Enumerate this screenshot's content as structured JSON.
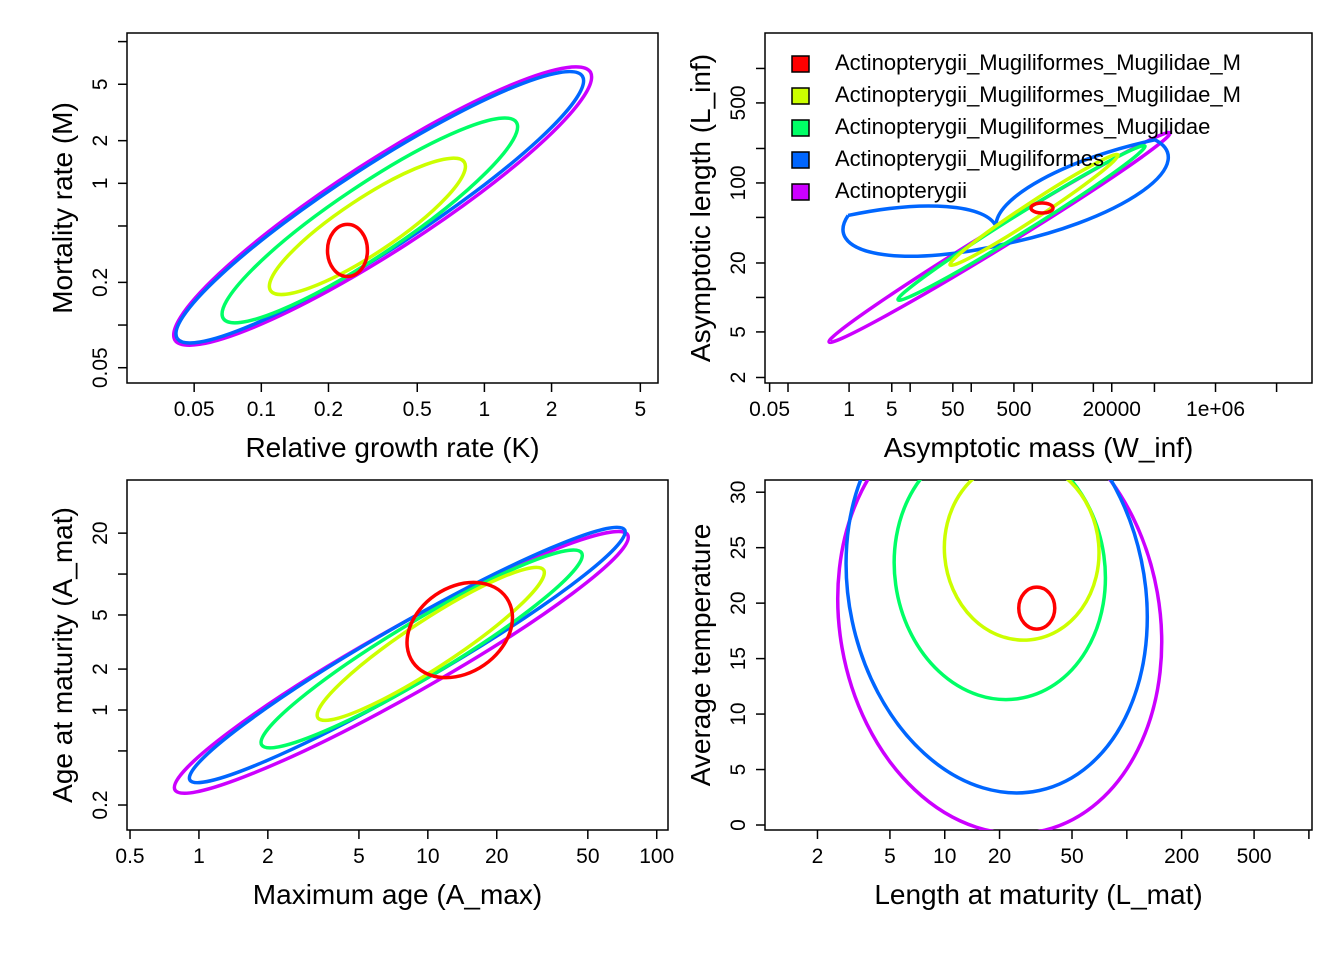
{
  "chart_data": [
    {
      "type": "ellipse",
      "xlabel": "Relative growth rate (K)",
      "ylabel": "Mortality rate (M)",
      "xlog": true,
      "ylog": true,
      "xlim": [
        0.025,
        6
      ],
      "ylim": [
        0.039,
        11.5
      ],
      "xticks": [
        0.05,
        0.1,
        0.2,
        0.5,
        1,
        2,
        5
      ],
      "yticks": [
        0.05,
        {
          "value": 0.1,
          "label": null
        },
        0.2,
        {
          "value": 0.5,
          "label": null
        },
        1,
        2,
        5,
        {
          "value": 10,
          "label": null
        }
      ],
      "series": [
        {
          "color": "#ff0000",
          "x": [
            0.198,
            0.243,
            0.299,
            0.243
          ],
          "y": [
            0.336,
            0.513,
            0.336,
            0.22
          ]
        },
        {
          "color": "#ccff00",
          "x": [
            0.11,
            0.256,
            0.813,
            0.349
          ],
          "y": [
            0.175,
            0.723,
            1.41,
            0.342
          ]
        },
        {
          "color": "#00ff66",
          "x": [
            0.0676,
            0.251,
            1.39,
            0.375
          ],
          "y": [
            0.111,
            0.878,
            2.7,
            0.342
          ]
        },
        {
          "color": "#0066ff",
          "x": [
            0.042,
            0.269,
            2.75,
            0.429
          ],
          "y": [
            0.0804,
            1.2,
            5.7,
            0.383
          ]
        },
        {
          "color": "#cc00ff",
          "x": [
            0.0411,
            0.272,
            2.99,
            0.447
          ],
          "y": [
            0.0778,
            1.28,
            6.08,
            0.371
          ]
        }
      ]
    },
    {
      "type": "ellipse",
      "xlabel": "Asymptotic mass (W_inf)",
      "ylabel": "Asymptotic length (L_inf)",
      "xlog": true,
      "ylog": true,
      "xlim": [
        0.042,
        38000000
      ],
      "ylim": [
        1.79,
        2040
      ],
      "xticks": [
        0.05,
        {
          "value": 0.1,
          "label": null
        },
        1,
        5,
        {
          "value": 10,
          "label": null
        },
        50,
        {
          "value": 100,
          "label": null
        },
        500,
        {
          "value": 1000,
          "label": null
        },
        {
          "value": 10000,
          "label": null
        },
        20000,
        {
          "value": 100000,
          "label": null
        },
        {
          "value": 1000000,
          "label": "1e+06"
        },
        {
          "value": 10000000,
          "label": null
        }
      ],
      "yticks": [
        2,
        5,
        {
          "value": 10,
          "label": null
        },
        20,
        {
          "value": 50,
          "label": null
        },
        100,
        {
          "value": 200,
          "label": null
        },
        500,
        {
          "value": 1000,
          "label": null
        }
      ],
      "legend": "topleft",
      "series": [
        {
          "name": "Actinopterygii_Mugiliformes_Mugilidae_M",
          "color": "#ff0000",
          "x": [
            952,
            1442,
            2183,
            1442
          ],
          "y": [
            60.5,
            66.8,
            60.5,
            54.7
          ]
        },
        {
          "name": "Actinopterygii_Mugiliformes_Mugilidae_M",
          "color": "#ccff00",
          "x": [
            45,
            903,
            25300,
            1259
          ],
          "y": [
            19.2,
            66.6,
            176,
            50.8
          ]
        },
        {
          "name": "Actinopterygii_Mugiliformes_Mugilidae",
          "color": "#00ff66",
          "x": [
            6.34,
            556,
            69900,
            798
          ],
          "y": [
            9.51,
            52.1,
            210,
            38.4
          ]
        },
        {
          "name": "Actinopterygii_Mugiliformes",
          "color": "#0066ff",
          "x": [
            0.964,
            255,
            102000,
            385
          ],
          "y": [
            52.0,
            41.7,
            238,
            29.6
          ]
        },
        {
          "name": "Actinopterygii",
          "color": "#cc00ff",
          "x": [
            0.471,
            236,
            179000,
            357
          ],
          "y": [
            4.09,
            39.6,
            274,
            28.2
          ]
        }
      ]
    },
    {
      "type": "ellipse",
      "xlabel": "Maximum age (A_max)",
      "ylabel": "Age at maturity (A_mat)",
      "xlog": true,
      "ylog": true,
      "xlim": [
        0.485,
        112
      ],
      "ylim": [
        0.131,
        49.2
      ],
      "xticks": [
        0.5,
        1,
        2,
        5,
        10,
        20,
        50,
        100
      ],
      "yticks": [
        0.2,
        {
          "value": 0.5,
          "label": null
        },
        1,
        2,
        5,
        {
          "value": 10,
          "label": null
        },
        20
      ],
      "series": [
        {
          "color": "#ff0000",
          "x": [
            8.6,
            10.8,
            22.1,
            17.6
          ],
          "y": [
            2.25,
            7.02,
            6.67,
            2.14
          ]
        },
        {
          "color": "#ccff00",
          "x": [
            3.31,
            9.04,
            32.1,
            11.7
          ],
          "y": [
            0.873,
            4.3,
            10.7,
            2.18
          ]
        },
        {
          "color": "#00ff66",
          "x": [
            1.88,
            8.15,
            47.0,
            10.8
          ],
          "y": [
            0.553,
            4.22,
            14.3,
            1.87
          ]
        },
        {
          "color": "#0066ff",
          "x": [
            0.913,
            7.0,
            72.5,
            9.42
          ],
          "y": [
            0.305,
            3.95,
            21.1,
            1.63
          ]
        },
        {
          "color": "#cc00ff",
          "x": [
            0.786,
            6.49,
            74.7,
            9.04
          ],
          "y": [
            0.258,
            3.69,
            19.4,
            1.36
          ]
        }
      ]
    },
    {
      "type": "ellipse",
      "xlabel": "Length at maturity (L_mat)",
      "ylabel": "Average temperature",
      "xlog": true,
      "ylog": false,
      "xlim": [
        1.03,
        1040
      ],
      "ylim": [
        -0.45,
        31.1
      ],
      "xticks": [
        2,
        5,
        10,
        20,
        50,
        {
          "value": 100,
          "label": null
        },
        200,
        500,
        {
          "value": 1000,
          "label": null
        }
      ],
      "yticks": [
        0,
        5,
        10,
        15,
        20,
        25,
        30
      ],
      "series": [
        {
          "color": "#ff0000",
          "x": [
            25.5,
            32.0,
            40.2,
            32.0
          ],
          "y": [
            19.55,
            21.44,
            19.55,
            17.66
          ]
        },
        {
          "color": "#ccff00",
          "x": [
            10.0,
            24.0,
            70.0,
            29.3
          ],
          "y": [
            24.17,
            32.86,
            25.38,
            16.69
          ]
        },
        {
          "color": "#00ff66",
          "x": [
            5.38,
            16.0,
            74.8,
            25.2
          ],
          "y": [
            21.66,
            34.57,
            24.29,
            11.38
          ]
        },
        {
          "color": "#0066ff",
          "x": [
            3.1,
            11.3,
            120,
            33.1
          ],
          "y": [
            18.4,
            39.2,
            23.9,
            3.11
          ]
        },
        {
          "color": "#cc00ff",
          "x": [
            2.73,
            12.5,
            147,
            32.2
          ],
          "y": [
            15.96,
            37.5,
            20.97,
            -0.61
          ]
        }
      ]
    }
  ]
}
